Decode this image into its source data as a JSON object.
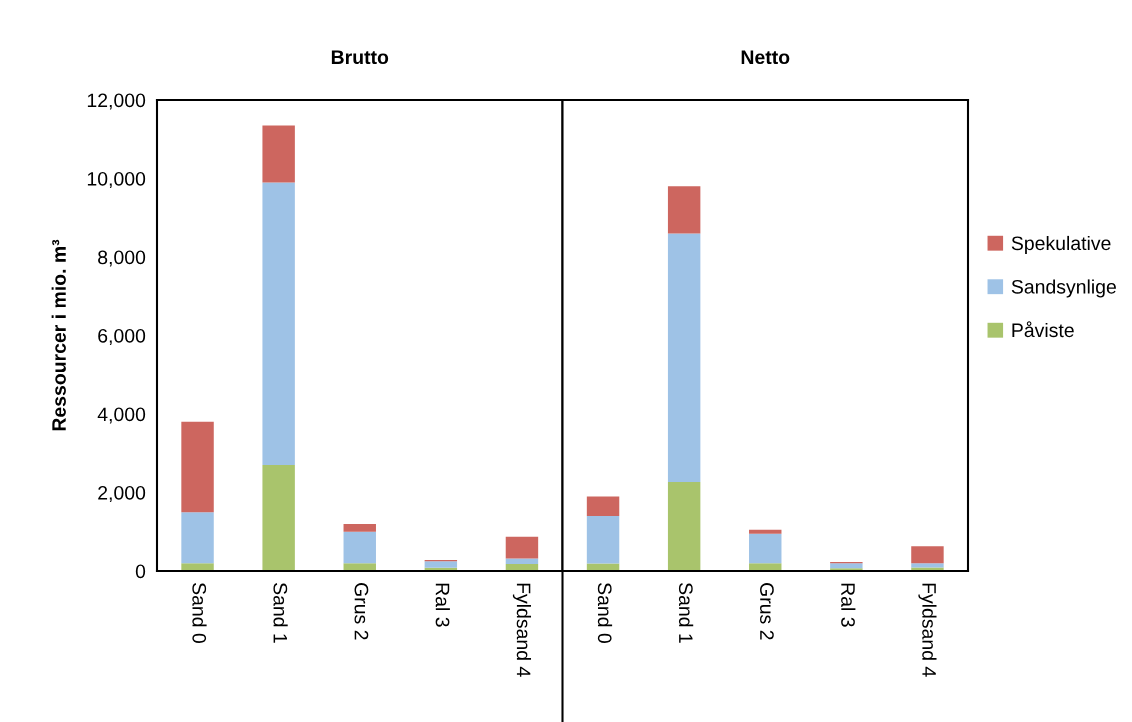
{
  "chart_data": [
    {
      "type": "bar",
      "title": "Brutto",
      "ylabel": "Ressourcer i mio. m³",
      "categories": [
        "Sand 0",
        "Sand 1",
        "Grus 2",
        "Ral 3",
        "Fyldsand 4"
      ],
      "stacked": true,
      "ylim": [
        0,
        12000
      ],
      "yticks": [
        0,
        {
          "value": 2000,
          "label": "2,000"
        },
        {
          "value": 4000,
          "label": "4,000"
        },
        {
          "value": 6000,
          "label": "6,000"
        },
        {
          "value": 8000,
          "label": "8,000"
        },
        {
          "value": 10000,
          "label": "10,000"
        },
        {
          "value": 12000,
          "label": "12,000"
        }
      ],
      "series": [
        {
          "color": "#a9c46c",
          "values": [
            200,
            2700,
            200,
            80,
            180
          ]
        },
        {
          "color": "#9ec2e6",
          "values": [
            1300,
            7200,
            800,
            170,
            140
          ]
        },
        {
          "color": "#cd665f",
          "values": [
            2300,
            1450,
            200,
            30,
            550
          ]
        }
      ]
    },
    {
      "type": "bar",
      "title": "Netto",
      "categories": [
        "Sand 0",
        "Sand 1",
        "Grus 2",
        "Ral 3",
        "Fyldsand 4"
      ],
      "stacked": true,
      "ylim": [
        0,
        12000
      ],
      "tick_labels": "x",
      "legend": "right",
      "series": [
        {
          "name": "Påviste",
          "color": "#a9c46c",
          "values": [
            190,
            2270,
            200,
            70,
            90
          ]
        },
        {
          "name": "Sandsynlige",
          "color": "#9ec2e6",
          "values": [
            1210,
            6330,
            750,
            130,
            110
          ]
        },
        {
          "name": "Spekulative",
          "color": "#cd665f",
          "values": [
            500,
            1200,
            100,
            30,
            430
          ]
        }
      ]
    }
  ]
}
